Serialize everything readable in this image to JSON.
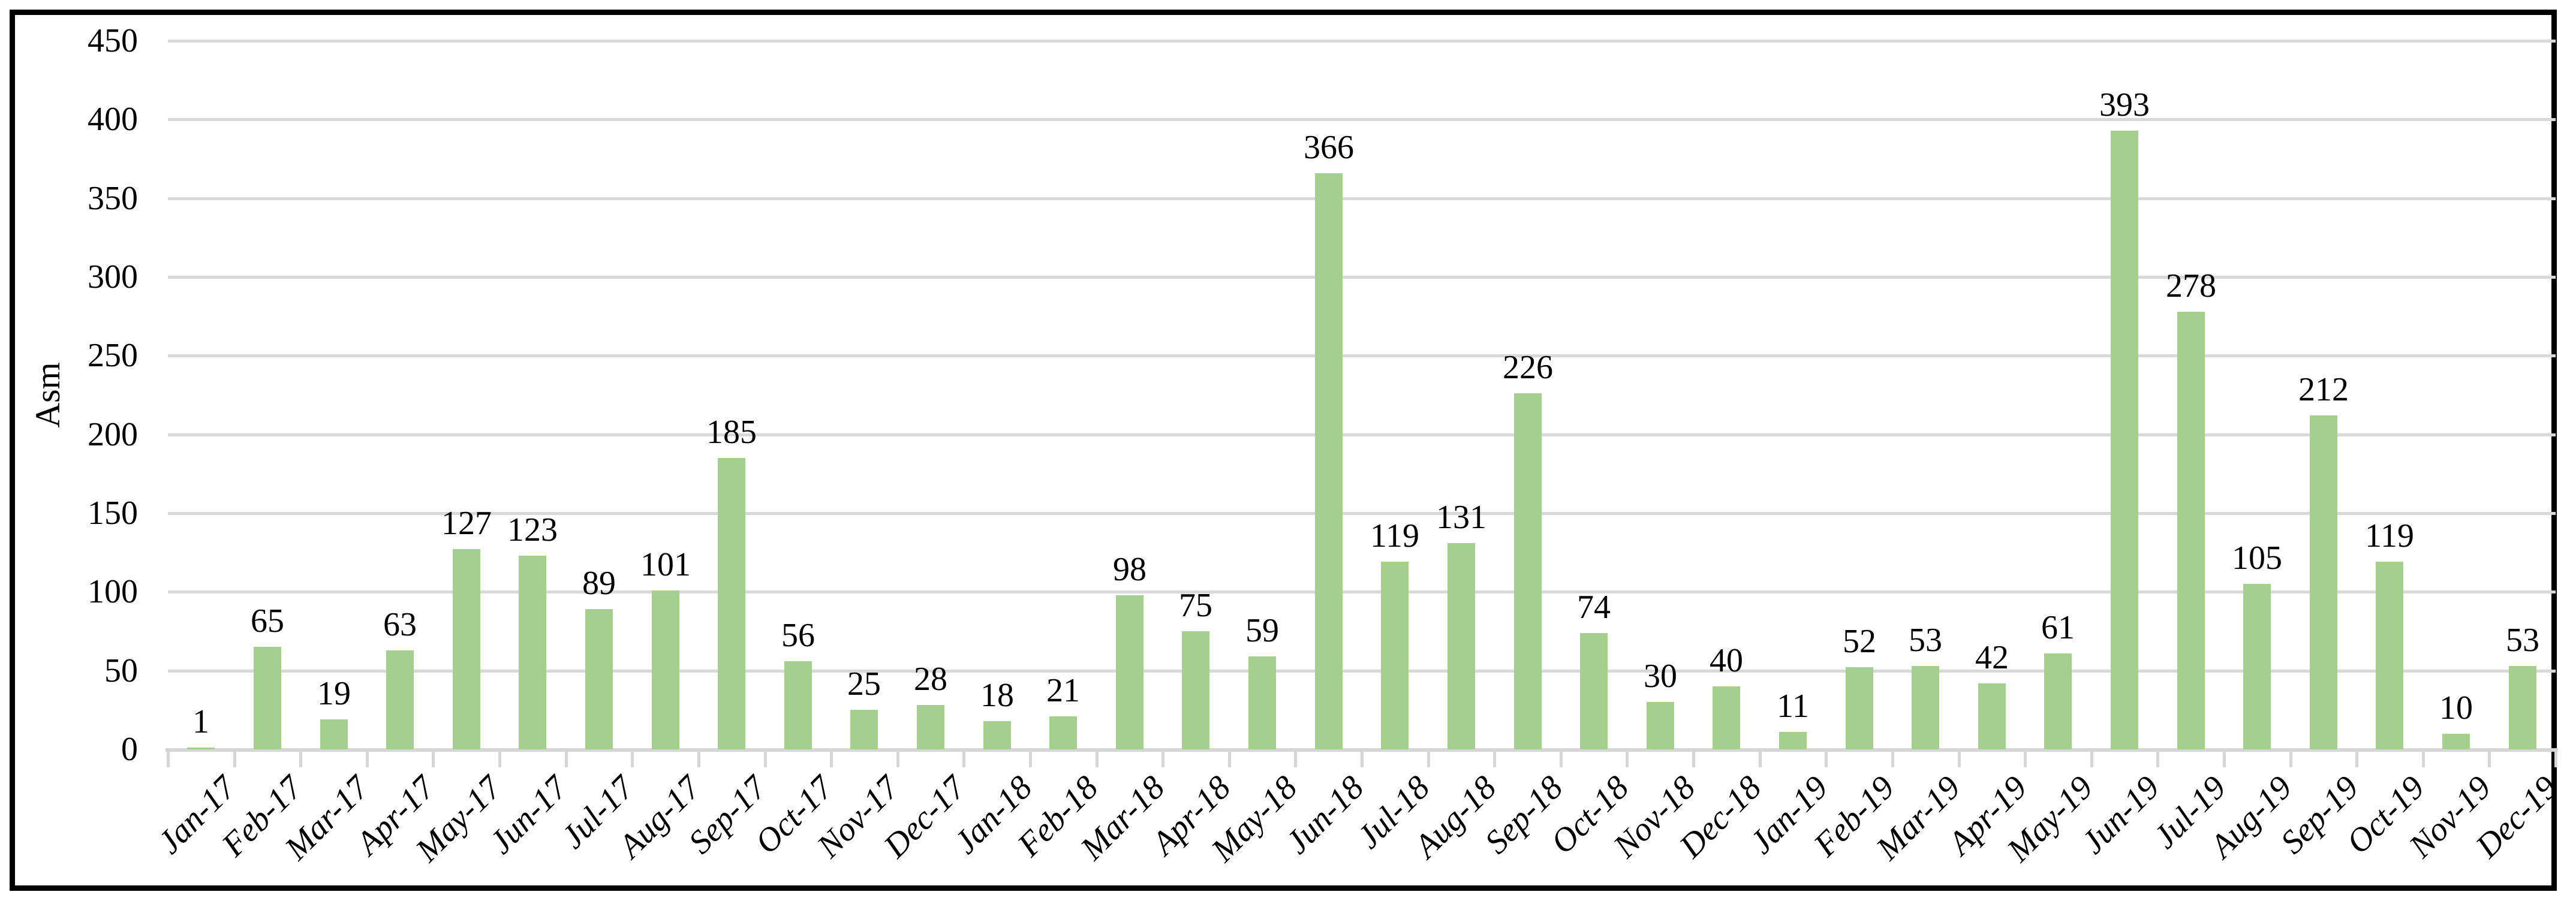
{
  "figure": {
    "background": "#ffffff",
    "frame_border_color": "#000000"
  },
  "chart_data": {
    "type": "bar",
    "title": "",
    "xlabel": "",
    "ylabel": "Asm",
    "ylim": [
      0,
      450
    ],
    "y_ticks": [
      0,
      50,
      100,
      150,
      200,
      250,
      300,
      350,
      400,
      450
    ],
    "grid": true,
    "legend": "none",
    "data_labels": true,
    "bar_color": "#a4d08d",
    "gridline_color": "#d9d9d9",
    "axis_line_color": "#d6d6d6",
    "text_color": "#000000",
    "categories": [
      "Jan-17",
      "Feb-17",
      "Mar-17",
      "Apr-17",
      "May-17",
      "Jun-17",
      "Jul-17",
      "Aug-17",
      "Sep-17",
      "Oct-17",
      "Nov-17",
      "Dec-17",
      "Jan-18",
      "Feb-18",
      "Mar-18",
      "Apr-18",
      "May-18",
      "Jun-18",
      "Jul-18",
      "Aug-18",
      "Sep-18",
      "Oct-18",
      "Nov-18",
      "Dec-18",
      "Jan-19",
      "Feb-19",
      "Mar-19",
      "Apr-19",
      "May-19",
      "Jun-19",
      "Jul-19",
      "Aug-19",
      "Sep-19",
      "Oct-19",
      "Nov-19",
      "Dec-19"
    ],
    "values": [
      1,
      65,
      19,
      63,
      127,
      123,
      89,
      101,
      185,
      56,
      25,
      28,
      18,
      21,
      98,
      75,
      59,
      366,
      119,
      131,
      226,
      74,
      30,
      40,
      11,
      52,
      53,
      42,
      61,
      393,
      278,
      105,
      212,
      119,
      10,
      53
    ]
  }
}
